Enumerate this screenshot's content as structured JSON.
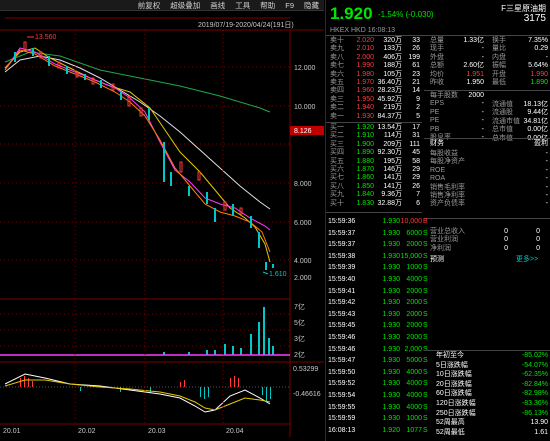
{
  "toolbar": {
    "items": [
      "前复权",
      "超级叠加",
      "画线",
      "工具",
      "帮助",
      "F9"
    ],
    "hidden": "隐藏"
  },
  "chart": {
    "range": "2019/07/19-2020/04/24(191日)",
    "price_axis": [
      "12.000",
      "10.000",
      "8.000",
      "6.000",
      "4.000",
      "2.000"
    ],
    "last_price_tag": "8.126",
    "high_label": "13.560",
    "low_label": "1.610",
    "vol_axis": [
      "7亿",
      "5亿",
      "3亿",
      "2亿"
    ],
    "macd_axis": [
      "0.53299",
      "-0.46616"
    ],
    "x_labels": [
      "20.01",
      "20.02",
      "20.03",
      "20.04"
    ]
  },
  "quote": {
    "price": "1.920",
    "change": "-1.54% (-0.030)",
    "name": "F三星原油期",
    "code": "3175",
    "meta": "HKEX HKD 16:08:13",
    "asks": [
      [
        "卖十",
        "2.020",
        "320万",
        "33"
      ],
      [
        "卖九",
        "2.010",
        "133万",
        "26"
      ],
      [
        "卖八",
        "2.000",
        "406万",
        "199"
      ],
      [
        "卖七",
        "1.990",
        "188万",
        "61"
      ],
      [
        "卖六",
        "1.980",
        "105万",
        "23"
      ],
      [
        "卖五",
        "1.970",
        "36.40万",
        "21"
      ],
      [
        "卖四",
        "1.960",
        "28.23万",
        "14"
      ],
      [
        "卖三",
        "1.950",
        "45.92万",
        "9"
      ],
      [
        "卖二",
        "1.940",
        "219万",
        "2"
      ],
      [
        "卖一",
        "1.930",
        "84.37万",
        "5"
      ]
    ],
    "bids": [
      [
        "买一",
        "1.920",
        "13.54万",
        "17"
      ],
      [
        "买二",
        "1.910",
        "114万",
        "31"
      ],
      [
        "买三",
        "1.900",
        "209万",
        "111"
      ],
      [
        "买四",
        "1.890",
        "92.30万",
        "45"
      ],
      [
        "买五",
        "1.880",
        "195万",
        "58"
      ],
      [
        "买六",
        "1.870",
        "146万",
        "29"
      ],
      [
        "买七",
        "1.860",
        "141万",
        "29"
      ],
      [
        "买八",
        "1.850",
        "141万",
        "26"
      ],
      [
        "买九",
        "1.840",
        "9.36万",
        "7"
      ],
      [
        "买十",
        "1.830",
        "32.88万",
        "6"
      ]
    ],
    "stats1": [
      [
        "总量",
        "1.33亿"
      ],
      [
        "现手",
        "-"
      ],
      [
        "外盘",
        "-"
      ],
      [
        "总额",
        "2.60亿"
      ],
      [
        "均价",
        "1.951"
      ],
      [
        "昨收",
        "1.950"
      ]
    ],
    "stats2": [
      [
        "换手",
        "7.35%"
      ],
      [
        "量比",
        "0.29"
      ],
      [
        "内盘",
        "-"
      ],
      [
        "振幅",
        "5.64%"
      ],
      [
        "开盘",
        "1.990"
      ],
      [
        "最低",
        "1.890"
      ]
    ],
    "fund_l": [
      [
        "每手股数",
        "2000"
      ],
      [
        "EPS",
        "-"
      ],
      [
        "PE",
        "-"
      ],
      [
        "PE",
        "-"
      ],
      [
        "PB",
        "-"
      ],
      [
        "股息率",
        "-"
      ]
    ],
    "fund_r": [
      [
        "流通值",
        "18.13亿"
      ],
      [
        "流通股",
        "9.44亿"
      ],
      [
        "流通市值",
        "34.81亿"
      ],
      [
        "总市值",
        "0.00亿"
      ],
      [
        "总市值",
        "0.00亿"
      ]
    ],
    "section_fin": "财务",
    "section_profit": "盈利",
    "section_fc": "预测",
    "more": "更多>>",
    "fin": [
      [
        "每股收益",
        "-"
      ],
      [
        "每股净资产",
        "-"
      ],
      [
        "ROE",
        "-"
      ],
      [
        "ROA",
        "-"
      ],
      [
        "销售毛利率",
        "-"
      ],
      [
        "销售净利率",
        "-"
      ],
      [
        "资产负债率",
        "-"
      ]
    ],
    "fc": [
      [
        "营业总收入",
        "0",
        "0"
      ],
      [
        "营业利润",
        "0",
        "0"
      ],
      [
        "净利润",
        "0",
        "0"
      ]
    ],
    "trades": [
      [
        "15:59:36",
        "1.930",
        "10,000",
        "B"
      ],
      [
        "15:59:37",
        "1.930",
        "6000",
        "S"
      ],
      [
        "15:59:37",
        "1.930",
        "2000",
        "S"
      ],
      [
        "15:59:38",
        "1.930",
        "15,000",
        "S"
      ],
      [
        "15:59:39",
        "1.930",
        "1000",
        "S"
      ],
      [
        "15:59:40",
        "1.930",
        "4000",
        "S"
      ],
      [
        "15:59:41",
        "1.930",
        "2000",
        "S"
      ],
      [
        "15:59:42",
        "1.930",
        "2000",
        "S"
      ],
      [
        "15:59:43",
        "1.930",
        "2000",
        "S"
      ],
      [
        "15:59:45",
        "1.930",
        "2000",
        "S"
      ],
      [
        "15:59:46",
        "1.930",
        "2000",
        "S"
      ],
      [
        "15:59:46",
        "1.930",
        "2,000",
        "S"
      ],
      [
        "15:59:47",
        "1.930",
        "5000",
        "S"
      ],
      [
        "15:59:50",
        "1.930",
        "4000",
        "S"
      ],
      [
        "15:59:52",
        "1.930",
        "4000",
        "S"
      ],
      [
        "15:59:54",
        "1.930",
        "4000",
        "S"
      ],
      [
        "15:59:55",
        "1.930",
        "4000",
        "S"
      ],
      [
        "15:59:59",
        "1.930",
        "1000",
        "S"
      ],
      [
        "16:08:13",
        "1.920",
        "1077",
        "S"
      ]
    ],
    "perf": [
      [
        "年初至今",
        "-85.02%"
      ],
      [
        "5日涨跌幅",
        "-54.07%"
      ],
      [
        "10日涨跌幅",
        "-62.35%"
      ],
      [
        "20日涨跌幅",
        "-82.84%"
      ],
      [
        "60日涨跌幅",
        "-82.98%"
      ],
      [
        "120日涨跌幅",
        "-83.36%"
      ],
      [
        "250日涨跌幅",
        "-86.13%"
      ],
      [
        "52周最高",
        "13.90"
      ],
      [
        "52周最低",
        "1.61"
      ]
    ]
  }
}
